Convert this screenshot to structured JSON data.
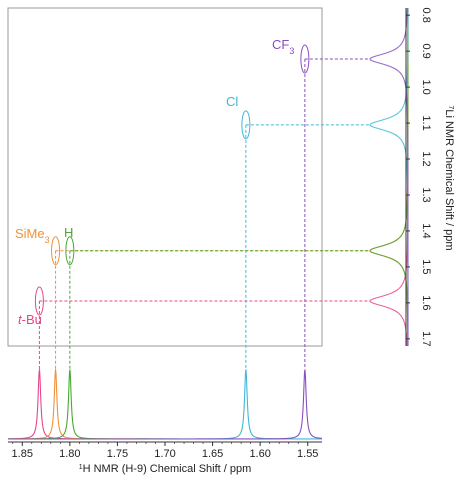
{
  "chart_data": {
    "type": "line",
    "title": "",
    "xlabel_sup": "1",
    "xlabel": "H NMR (H-9) Chemical Shift / ppm",
    "ylabel_sup": "7",
    "ylabel": "Li NMR Chemical Shift / ppm",
    "x_axis": {
      "range": [
        1.865,
        1.535
      ],
      "reversed": true,
      "ticks": [
        "1.85",
        "1.80",
        "1.75",
        "1.70",
        "1.65",
        "1.60",
        "1.55"
      ],
      "tick_values": [
        1.85,
        1.8,
        1.75,
        1.7,
        1.65,
        1.6,
        1.55
      ]
    },
    "y_axis": {
      "range": [
        0.78,
        1.72
      ],
      "reversed": true,
      "ticks": [
        "0.8",
        "0.9",
        "1.0",
        "1.1",
        "1.2",
        "1.3",
        "1.4",
        "1.5",
        "1.6",
        "1.7"
      ],
      "tick_values": [
        0.8,
        0.9,
        1.0,
        1.1,
        1.2,
        1.3,
        1.4,
        1.5,
        1.6,
        1.7
      ]
    },
    "series": [
      {
        "name": "t-Bu",
        "label_prefix": "t",
        "label_rest": "-Bu",
        "color": "#e8458b",
        "h_shift": 1.832,
        "li_shift": 1.595
      },
      {
        "name": "SiMe3",
        "label_main": "SiMe",
        "label_sub": "3",
        "color": "#f0903a",
        "h_shift": 1.815,
        "li_shift": 1.455
      },
      {
        "name": "H",
        "color": "#4aa832",
        "h_shift": 1.8,
        "li_shift": 1.455
      },
      {
        "name": "Cl",
        "color": "#3fb7d8",
        "h_shift": 1.615,
        "li_shift": 1.105
      },
      {
        "name": "CF3",
        "label_main": "CF",
        "label_sub": "3",
        "color": "#8a4fbf",
        "h_shift": 1.553,
        "li_shift": 0.922
      }
    ]
  }
}
